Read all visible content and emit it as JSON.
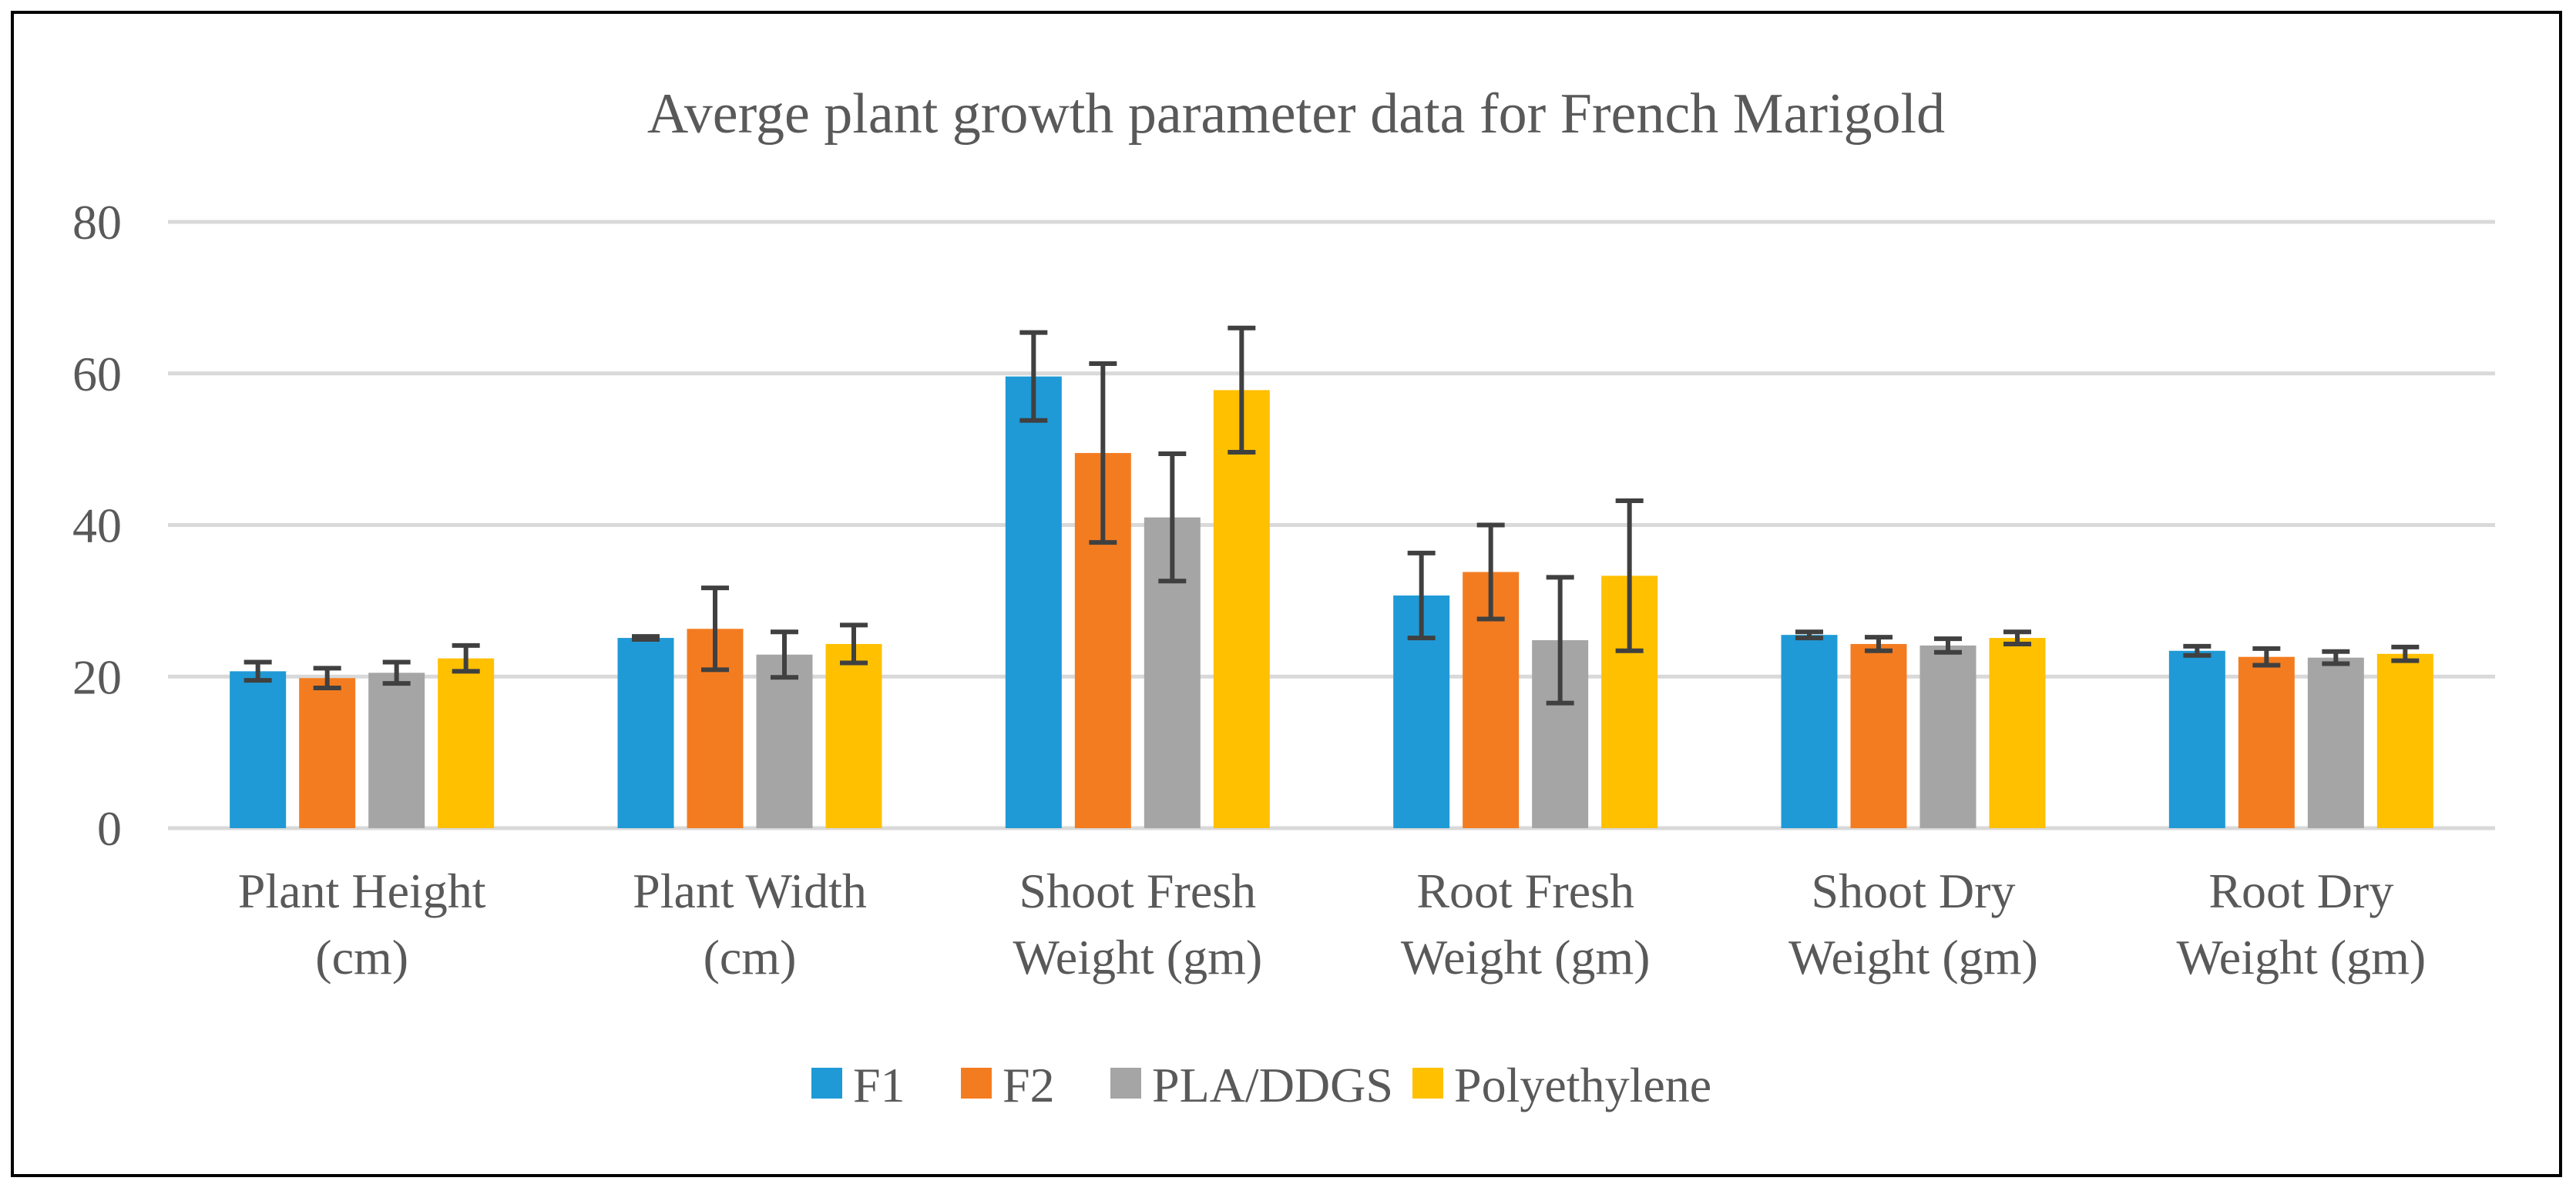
{
  "chart_data": {
    "type": "bar",
    "title": "Averge plant growth parameter data for French Marigold",
    "xlabel": "",
    "ylabel": "",
    "ylim": [
      0,
      80
    ],
    "yticks": [
      0,
      20,
      40,
      60,
      80
    ],
    "grid": true,
    "legend_position": "bottom",
    "categories": [
      [
        "Plant Height",
        "(cm)"
      ],
      [
        "Plant Width",
        "(cm)"
      ],
      [
        "Shoot Fresh",
        "Weight (gm)"
      ],
      [
        "Root Fresh",
        "Weight (gm)"
      ],
      [
        "Shoot Dry",
        "Weight (gm)"
      ],
      [
        "Root Dry",
        "Weight (gm)"
      ]
    ],
    "series": [
      {
        "name": "F1",
        "color": "#1F9AD6",
        "values": [
          20.7,
          25.1,
          59.6,
          30.7,
          25.5,
          23.4
        ],
        "errors": [
          1.2,
          0.2,
          5.8,
          5.6,
          0.4,
          0.6
        ]
      },
      {
        "name": "F2",
        "color": "#F47C20",
        "values": [
          19.8,
          26.3,
          49.5,
          33.8,
          24.3,
          22.6
        ],
        "errors": [
          1.3,
          5.4,
          11.8,
          6.2,
          0.9,
          1.1
        ]
      },
      {
        "name": "PLA/DDGS",
        "color": "#A5A5A5",
        "values": [
          20.5,
          22.9,
          41.0,
          24.8,
          24.1,
          22.5
        ],
        "errors": [
          1.4,
          3.0,
          8.4,
          8.3,
          0.9,
          0.8
        ]
      },
      {
        "name": "Polyethylene",
        "color": "#FFC000",
        "values": [
          22.4,
          24.3,
          57.8,
          33.3,
          25.1,
          23.0
        ],
        "errors": [
          1.7,
          2.5,
          8.2,
          9.9,
          0.8,
          0.9
        ]
      }
    ]
  }
}
